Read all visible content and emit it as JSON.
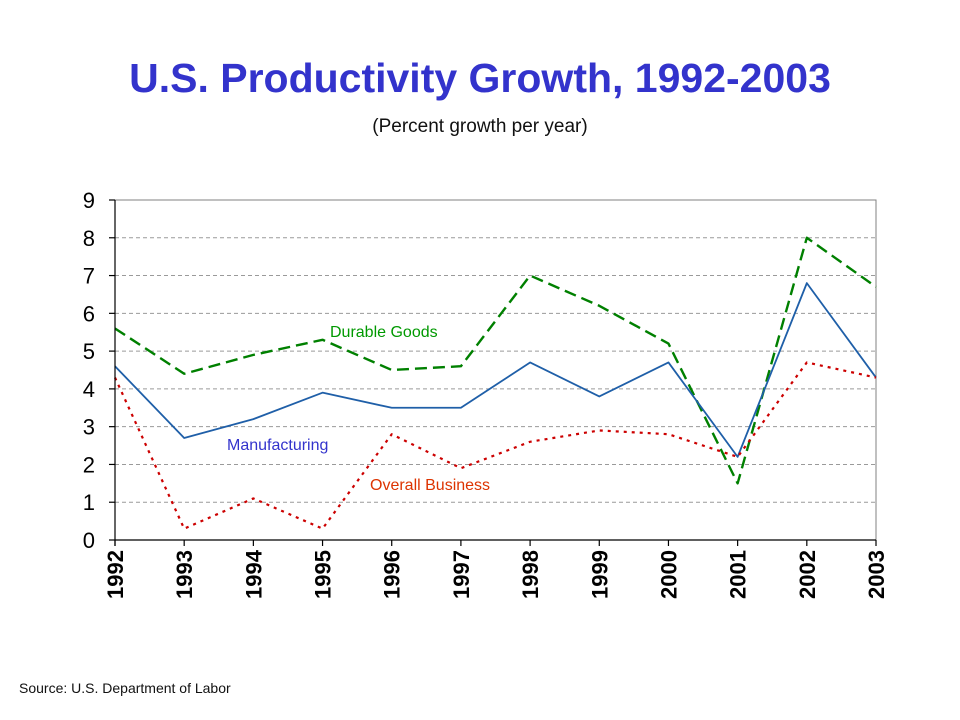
{
  "title": "U.S. Productivity Growth, 1992-2003",
  "subtitle": "(Percent growth per year)",
  "source": "Source:  U.S. Department of Labor",
  "chart_data": {
    "type": "line",
    "title": "U.S. Productivity Growth, 1992-2003",
    "subtitle": "(Percent growth per year)",
    "xlabel": "",
    "ylabel": "",
    "categories": [
      "1992",
      "1993",
      "1994",
      "1995",
      "1996",
      "1997",
      "1998",
      "1999",
      "2000",
      "2001",
      "2002",
      "2003"
    ],
    "ylim": [
      0,
      9
    ],
    "yticks": [
      "0",
      "1",
      "2",
      "3",
      "4",
      "5",
      "6",
      "7",
      "8",
      "9"
    ],
    "grid": "horizontal dashed",
    "legend": "inline labels",
    "series": [
      {
        "name": "Durable Goods",
        "color": "#008000",
        "style": "long-dash",
        "values": [
          5.6,
          4.4,
          4.9,
          5.3,
          4.5,
          4.6,
          7.0,
          6.2,
          5.2,
          1.5,
          8.0,
          6.7
        ]
      },
      {
        "name": "Manufacturing",
        "color": "#1f5fa8",
        "style": "solid",
        "values": [
          4.6,
          2.7,
          3.2,
          3.9,
          3.5,
          3.5,
          4.7,
          3.8,
          4.7,
          2.2,
          6.8,
          4.3
        ]
      },
      {
        "name": "Overall Business",
        "color": "#cc0000",
        "style": "dotted",
        "values": [
          4.3,
          0.3,
          1.1,
          0.3,
          2.8,
          1.9,
          2.6,
          2.9,
          2.8,
          2.2,
          4.7,
          4.3
        ]
      }
    ],
    "annotations": [
      {
        "text": "Durable Goods",
        "color": "#009900"
      },
      {
        "text": "Manufacturing",
        "color": "#3333cc"
      },
      {
        "text": "Overall Business",
        "color": "#dd3300"
      }
    ]
  }
}
